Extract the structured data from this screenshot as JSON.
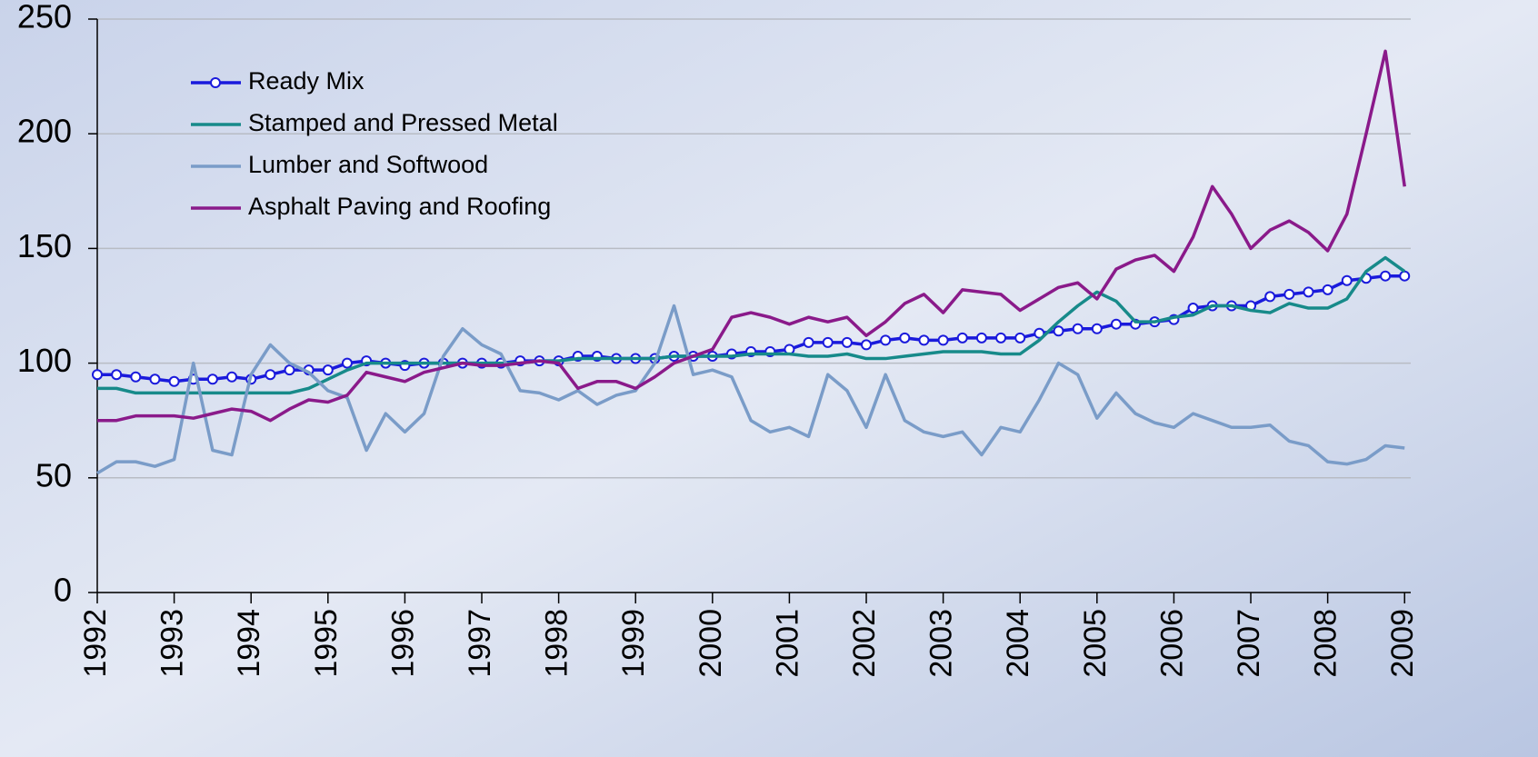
{
  "chart_data": {
    "type": "line",
    "x": [
      1992,
      1992.25,
      1992.5,
      1992.75,
      1993,
      1993.25,
      1993.5,
      1993.75,
      1994,
      1994.25,
      1994.5,
      1994.75,
      1995,
      1995.25,
      1995.5,
      1995.75,
      1996,
      1996.25,
      1996.5,
      1996.75,
      1997,
      1997.25,
      1997.5,
      1997.75,
      1998,
      1998.25,
      1998.5,
      1998.75,
      1999,
      1999.25,
      1999.5,
      1999.75,
      2000,
      2000.25,
      2000.5,
      2000.75,
      2001,
      2001.25,
      2001.5,
      2001.75,
      2002,
      2002.25,
      2002.5,
      2002.75,
      2003,
      2003.25,
      2003.5,
      2003.75,
      2004,
      2004.25,
      2004.5,
      2004.75,
      2005,
      2005.25,
      2005.5,
      2005.75,
      2006,
      2006.25,
      2006.5,
      2006.75,
      2007,
      2007.25,
      2007.5,
      2007.75,
      2008,
      2008.25,
      2008.5,
      2008.75,
      2009
    ],
    "series": [
      {
        "name": "Ready Mix",
        "color": "#1a1adc",
        "marker": true,
        "values": [
          95,
          95,
          94,
          93,
          92,
          93,
          93,
          94,
          93,
          95,
          97,
          97,
          97,
          100,
          101,
          100,
          99,
          100,
          100,
          100,
          100,
          100,
          101,
          101,
          101,
          103,
          103,
          102,
          102,
          102,
          103,
          103,
          103,
          104,
          105,
          105,
          106,
          109,
          109,
          109,
          108,
          110,
          111,
          110,
          110,
          111,
          111,
          111,
          111,
          113,
          114,
          115,
          115,
          117,
          117,
          118,
          119,
          124,
          125,
          125,
          125,
          129,
          130,
          131,
          132,
          136,
          137,
          138,
          138
        ]
      },
      {
        "name": "Stamped and Pressed Metal",
        "color": "#178a8a",
        "marker": false,
        "values": [
          89,
          89,
          87,
          87,
          87,
          87,
          87,
          87,
          87,
          87,
          87,
          89,
          93,
          97,
          100,
          100,
          100,
          100,
          100,
          100,
          100,
          100,
          100,
          101,
          101,
          102,
          102,
          102,
          102,
          102,
          103,
          103,
          103,
          103,
          104,
          104,
          104,
          103,
          103,
          104,
          102,
          102,
          103,
          104,
          105,
          105,
          105,
          104,
          104,
          110,
          118,
          125,
          131,
          127,
          118,
          118,
          120,
          121,
          125,
          125,
          123,
          122,
          126,
          124,
          124,
          128,
          140,
          146,
          140
        ]
      },
      {
        "name": "Lumber and Softwood",
        "color": "#7a9cc8",
        "marker": false,
        "values": [
          52,
          57,
          57,
          55,
          58,
          100,
          62,
          60,
          95,
          108,
          100,
          96,
          88,
          85,
          62,
          78,
          70,
          78,
          103,
          115,
          108,
          104,
          88,
          87,
          84,
          88,
          82,
          86,
          88,
          100,
          125,
          95,
          97,
          94,
          75,
          70,
          72,
          68,
          95,
          88,
          72,
          95,
          75,
          70,
          68,
          70,
          60,
          72,
          70,
          84,
          100,
          95,
          76,
          87,
          78,
          74,
          72,
          78,
          75,
          72,
          72,
          73,
          66,
          64,
          57,
          56,
          58,
          64,
          63
        ]
      },
      {
        "name": "Asphalt Paving and Roofing",
        "color": "#8a1a8a",
        "marker": false,
        "values": [
          75,
          75,
          77,
          77,
          77,
          76,
          78,
          80,
          79,
          75,
          80,
          84,
          83,
          86,
          96,
          94,
          92,
          96,
          98,
          100,
          99,
          99,
          100,
          101,
          100,
          89,
          92,
          92,
          89,
          94,
          100,
          103,
          106,
          120,
          122,
          120,
          117,
          120,
          118,
          120,
          112,
          118,
          126,
          130,
          122,
          132,
          131,
          130,
          123,
          128,
          133,
          135,
          128,
          141,
          145,
          147,
          140,
          155,
          177,
          165,
          150,
          158,
          162,
          157,
          149,
          165,
          200,
          236,
          177
        ]
      }
    ],
    "xlim": [
      1992,
      2009.08
    ],
    "xticks": [
      1992,
      1993,
      1994,
      1995,
      1996,
      1997,
      1998,
      1999,
      2000,
      2001,
      2002,
      2003,
      2004,
      2005,
      2006,
      2007,
      2008,
      2009
    ],
    "ylim": [
      0,
      250
    ],
    "yticks": [
      0,
      50,
      100,
      150,
      200,
      250
    ],
    "grid": true,
    "legend": "top-left"
  }
}
